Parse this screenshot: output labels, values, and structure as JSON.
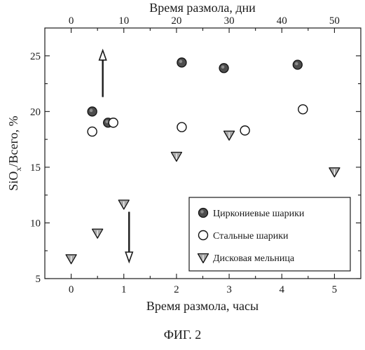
{
  "figure_caption": "ФИГ. 2",
  "chart_data": {
    "type": "scatter",
    "xlabel_bottom": "Время размола, часы",
    "xlabel_top": "Время размола, дни",
    "ylabel": "SiOx/Всего, %",
    "ylabel_parts": {
      "base": "SiO",
      "sub": "x",
      "rest": "/Всего, %"
    },
    "xlim_bottom": [
      -0.5,
      5.5
    ],
    "xticks_bottom": [
      0,
      1,
      2,
      3,
      4,
      5
    ],
    "xlim_top": [
      -5,
      55
    ],
    "xticks_top": [
      0,
      10,
      20,
      30,
      40,
      50
    ],
    "ylim": [
      5,
      27.5
    ],
    "yticks": [
      5,
      10,
      15,
      20,
      25
    ],
    "grid": false,
    "legend_position": "bottom-right",
    "series": [
      {
        "name": "Циркониевые шарики",
        "marker": "filled-circle",
        "color": "#555555",
        "axis": "mixed",
        "points": [
          {
            "x": 0.4,
            "y": 20.0
          },
          {
            "x": 0.7,
            "y": 19.0
          },
          {
            "x": 21,
            "y": 24.4,
            "axis": "top"
          },
          {
            "x": 29,
            "y": 23.9,
            "axis": "top"
          },
          {
            "x": 43,
            "y": 24.2,
            "axis": "top"
          }
        ]
      },
      {
        "name": "Стальные шарики",
        "marker": "open-circle",
        "color": "#ffffff",
        "axis": "mixed",
        "points": [
          {
            "x": 0.4,
            "y": 18.2
          },
          {
            "x": 0.8,
            "y": 19.0
          },
          {
            "x": 21,
            "y": 18.6,
            "axis": "top"
          },
          {
            "x": 33,
            "y": 18.3,
            "axis": "top"
          },
          {
            "x": 44,
            "y": 20.2,
            "axis": "top"
          }
        ]
      },
      {
        "name": "Дисковая мельница",
        "marker": "triangle-down",
        "color": "#9a9a9a",
        "axis": "bottom",
        "points": [
          {
            "x": 0,
            "y": 6.8
          },
          {
            "x": 0.5,
            "y": 9.1
          },
          {
            "x": 1.0,
            "y": 11.7
          },
          {
            "x": 2.0,
            "y": 16.0
          },
          {
            "x": 3.0,
            "y": 17.9
          },
          {
            "x": 5.0,
            "y": 14.6
          }
        ]
      }
    ],
    "annotations": [
      {
        "type": "arrow-up",
        "x": 0.6,
        "y_from": 21.3,
        "y_to": 25.5,
        "refers_to": "top-axis"
      },
      {
        "type": "arrow-down",
        "x": 1.1,
        "y_from": 11.0,
        "y_to": 6.5,
        "refers_to": "bottom-axis"
      }
    ]
  }
}
